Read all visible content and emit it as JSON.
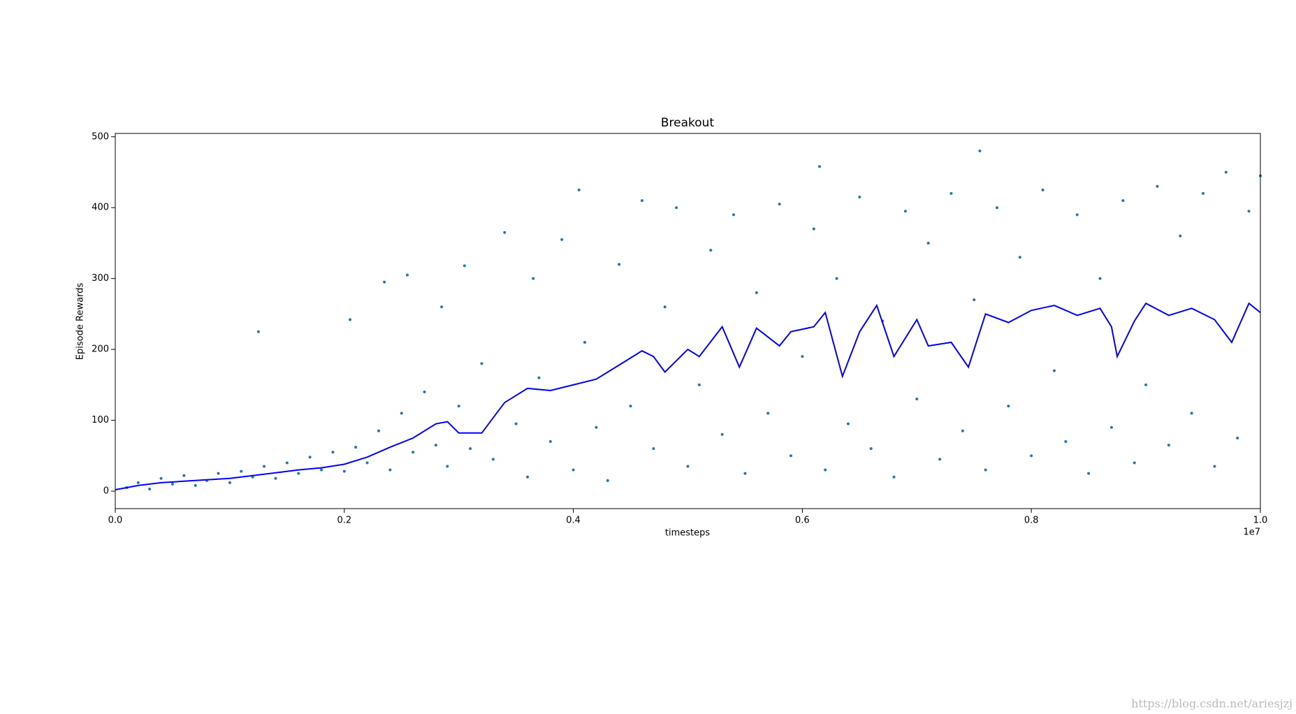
{
  "chart_data": {
    "type": "scatter",
    "title": "Breakout",
    "x_label": "timesteps",
    "y_label": "Episode Rewards",
    "x_offset_label": "1e7",
    "watermark": "https://blog.csdn.net/ariesjzj",
    "xlim": [
      0,
      1
    ],
    "ylim": [
      -24.6,
      504.7
    ],
    "xticks": [
      {
        "value": 0,
        "label": "0.0"
      },
      0.2,
      0.4,
      0.6,
      0.8,
      {
        "value": 1,
        "label": "1.0"
      }
    ],
    "yticks": [
      0,
      100,
      200,
      300,
      400,
      500
    ],
    "series": [
      {
        "style": "points",
        "color": "#1f77b4",
        "x": [
          0.01,
          0.02,
          0.03,
          0.04,
          0.05,
          0.06,
          0.07,
          0.08,
          0.09,
          0.1,
          0.11,
          0.12,
          0.125,
          0.13,
          0.14,
          0.15,
          0.16,
          0.17,
          0.18,
          0.19,
          0.2,
          0.205,
          0.21,
          0.22,
          0.23,
          0.235,
          0.24,
          0.25,
          0.255,
          0.26,
          0.27,
          0.28,
          0.285,
          0.29,
          0.3,
          0.305,
          0.31,
          0.32,
          0.33,
          0.34,
          0.35,
          0.36,
          0.365,
          0.37,
          0.38,
          0.39,
          0.4,
          0.405,
          0.41,
          0.42,
          0.43,
          0.44,
          0.45,
          0.46,
          0.47,
          0.48,
          0.49,
          0.5,
          0.51,
          0.52,
          0.53,
          0.54,
          0.55,
          0.56,
          0.57,
          0.58,
          0.59,
          0.6,
          0.61,
          0.615,
          0.62,
          0.63,
          0.64,
          0.65,
          0.66,
          0.67,
          0.68,
          0.69,
          0.7,
          0.71,
          0.72,
          0.73,
          0.74,
          0.75,
          0.755,
          0.76,
          0.77,
          0.78,
          0.79,
          0.8,
          0.81,
          0.82,
          0.83,
          0.84,
          0.85,
          0.86,
          0.87,
          0.88,
          0.89,
          0.9,
          0.91,
          0.92,
          0.93,
          0.94,
          0.95,
          0.96,
          0.97,
          0.98,
          0.99,
          1.0
        ],
        "y": [
          5,
          12,
          3,
          18,
          10,
          22,
          8,
          15,
          25,
          12,
          28,
          20,
          225,
          35,
          18,
          40,
          25,
          48,
          30,
          55,
          28,
          242,
          62,
          40,
          85,
          295,
          30,
          110,
          305,
          55,
          140,
          65,
          260,
          35,
          120,
          318,
          60,
          180,
          45,
          365,
          95,
          20,
          300,
          160,
          70,
          355,
          30,
          425,
          210,
          90,
          15,
          320,
          120,
          410,
          60,
          260,
          400,
          35,
          150,
          340,
          80,
          390,
          25,
          280,
          110,
          405,
          50,
          190,
          370,
          458,
          30,
          300,
          95,
          415,
          60,
          240,
          20,
          395,
          130,
          350,
          45,
          420,
          85,
          270,
          480,
          30,
          400,
          120,
          330,
          50,
          425,
          170,
          70,
          390,
          25,
          300,
          90,
          410,
          40,
          150,
          430,
          65,
          360,
          110,
          420,
          35,
          450,
          75,
          395,
          445
        ]
      },
      {
        "style": "line",
        "color": "#0000ff",
        "x": [
          0,
          0.02,
          0.04,
          0.06,
          0.08,
          0.1,
          0.12,
          0.14,
          0.16,
          0.18,
          0.2,
          0.22,
          0.24,
          0.26,
          0.28,
          0.29,
          0.3,
          0.32,
          0.34,
          0.36,
          0.38,
          0.4,
          0.42,
          0.44,
          0.46,
          0.47,
          0.48,
          0.5,
          0.51,
          0.53,
          0.545,
          0.56,
          0.58,
          0.59,
          0.61,
          0.62,
          0.635,
          0.65,
          0.665,
          0.68,
          0.7,
          0.71,
          0.73,
          0.745,
          0.76,
          0.78,
          0.8,
          0.82,
          0.84,
          0.86,
          0.87,
          0.875,
          0.89,
          0.9,
          0.92,
          0.94,
          0.96,
          0.975,
          0.99,
          1.0
        ],
        "y": [
          2,
          8,
          12,
          14,
          16,
          18,
          22,
          26,
          30,
          33,
          38,
          48,
          62,
          75,
          95,
          98,
          82,
          82,
          125,
          145,
          142,
          150,
          158,
          178,
          198,
          190,
          168,
          200,
          190,
          232,
          175,
          230,
          205,
          225,
          232,
          252,
          162,
          225,
          262,
          190,
          242,
          205,
          210,
          175,
          250,
          238,
          255,
          262,
          248,
          258,
          232,
          190,
          240,
          265,
          248,
          258,
          242,
          210,
          265,
          252
        ]
      }
    ]
  }
}
